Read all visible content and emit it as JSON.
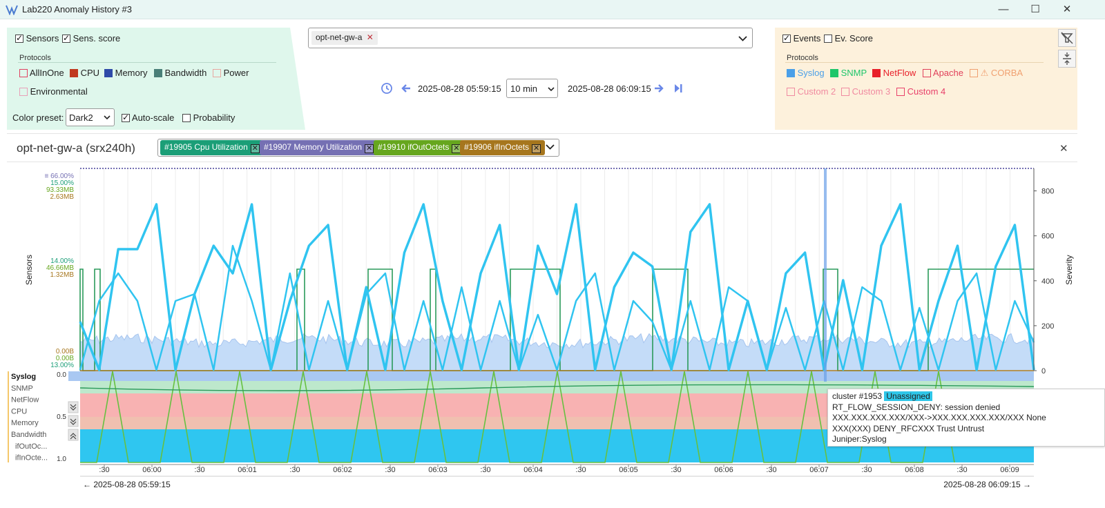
{
  "window": {
    "title": "Lab220 Anomaly History #3",
    "minimize": "—",
    "maximize": "☐",
    "close": "✕"
  },
  "left_panel": {
    "sensors_label": "Sensors",
    "sensors_checked": true,
    "sens_score_label": "Sens. score",
    "sens_score_checked": true,
    "protocols_title": "Protocols",
    "protocols": [
      {
        "label": "AllInOne",
        "color": "#e04060",
        "filled": false
      },
      {
        "label": "CPU",
        "color": "#c0391f",
        "filled": true
      },
      {
        "label": "Memory",
        "color": "#2e4aa8",
        "filled": true
      },
      {
        "label": "Bandwidth",
        "color": "#4a7f78",
        "filled": true
      },
      {
        "label": "Power",
        "color": "#e8a7a0",
        "filled": false
      },
      {
        "label": "Environmental",
        "color": "#e8a0b8",
        "filled": false
      }
    ],
    "color_preset_label": "Color preset:",
    "color_preset_value": "Dark2",
    "autoscale_label": "Auto-scale",
    "autoscale_checked": true,
    "probability_label": "Probability",
    "probability_checked": false
  },
  "device_select": {
    "value": "opt-net-gw-a",
    "remove": "✕"
  },
  "time_nav": {
    "start": "2025-08-28 05:59:15",
    "window": "10 min",
    "end": "2025-08-28 06:09:15"
  },
  "right_panel": {
    "events_label": "Events",
    "events_checked": true,
    "ev_score_label": "Ev. Score",
    "ev_score_checked": false,
    "protocols_title": "Protocols",
    "protocols": [
      {
        "label": "Syslog",
        "color": "#4a9fe8",
        "filled": true
      },
      {
        "label": "SNMP",
        "color": "#1ec66a",
        "filled": true
      },
      {
        "label": "NetFlow",
        "color": "#e8202a",
        "filled": true
      },
      {
        "label": "Apache",
        "color": "#e0405a",
        "filled": false
      },
      {
        "label": "⚠ CORBA",
        "color": "#f0a070",
        "filled": false
      },
      {
        "label": "Custom 2",
        "color": "#f08aa0",
        "filled": false
      },
      {
        "label": "Custom 3",
        "color": "#f08aa0",
        "filled": false
      },
      {
        "label": "Custom 4",
        "color": "#e8406a",
        "filled": false
      }
    ]
  },
  "chart_header": {
    "device": "opt-net-gw-a (srx240h)",
    "chips": [
      {
        "label": "#19905 Cpu Utilization",
        "color": "#1b9e77"
      },
      {
        "label": "#19907 Memory Utilization",
        "color": "#7570b3"
      },
      {
        "label": "#19910 ifOutOctets",
        "color": "#66a61e"
      },
      {
        "label": "#19906 ifInOctets",
        "color": "#a6761d"
      }
    ],
    "close": "✕"
  },
  "chart_data": {
    "type": "line",
    "y_left_label": "Sensors",
    "y_right_label": "Severity",
    "y_right_ticks": [
      "800",
      "600",
      "400",
      "200",
      "0"
    ],
    "left_ticks_top": [
      "≡ 66.00%",
      "15.00%",
      "93.33MB",
      "2.63MB"
    ],
    "left_ticks_mid": [
      "14.00%",
      "46.66MB",
      "1.32MB"
    ],
    "left_ticks_bottom": [
      "0.00B",
      "0.00B",
      "13.00%"
    ],
    "x_ticks": [
      ":30",
      "06:00",
      ":30",
      "06:01",
      ":30",
      "06:02",
      ":30",
      "06:03",
      ":30",
      "06:04",
      ":30",
      "06:05",
      ":30",
      "06:06",
      ":30",
      "06:07",
      ":30",
      "06:08",
      ":30",
      "06:09"
    ],
    "range_start": "← 2025-08-28 05:59:15",
    "range_end": "2025-08-28 06:09:15 →",
    "lower_scale": [
      "0.0",
      "0.5",
      "1.0"
    ],
    "band_labels": [
      "Syslog",
      "SNMP",
      "NetFlow",
      "CPU",
      "Memory",
      "Bandwidth",
      "ifOutOc...",
      "ifInOcte..."
    ],
    "band_colors": [
      "#a9c8f2",
      "#bde8cc",
      "#f8b2b2",
      "#f0c0b0",
      "#c8c8e8",
      "#2fc6f0"
    ]
  },
  "tooltip": {
    "cluster": "cluster #1953",
    "tag": "Unassigned",
    "line1": "RT_FLOW_SESSION_DENY: session denied",
    "line2": "XXX.XXX.XXX.XXX/XXX->XXX.XXX.XXX.XXX/XXX None",
    "line3": "XXX(XXX) DENY_RFCXXX Trust Untrust",
    "line4": "Juniper:Syslog"
  }
}
